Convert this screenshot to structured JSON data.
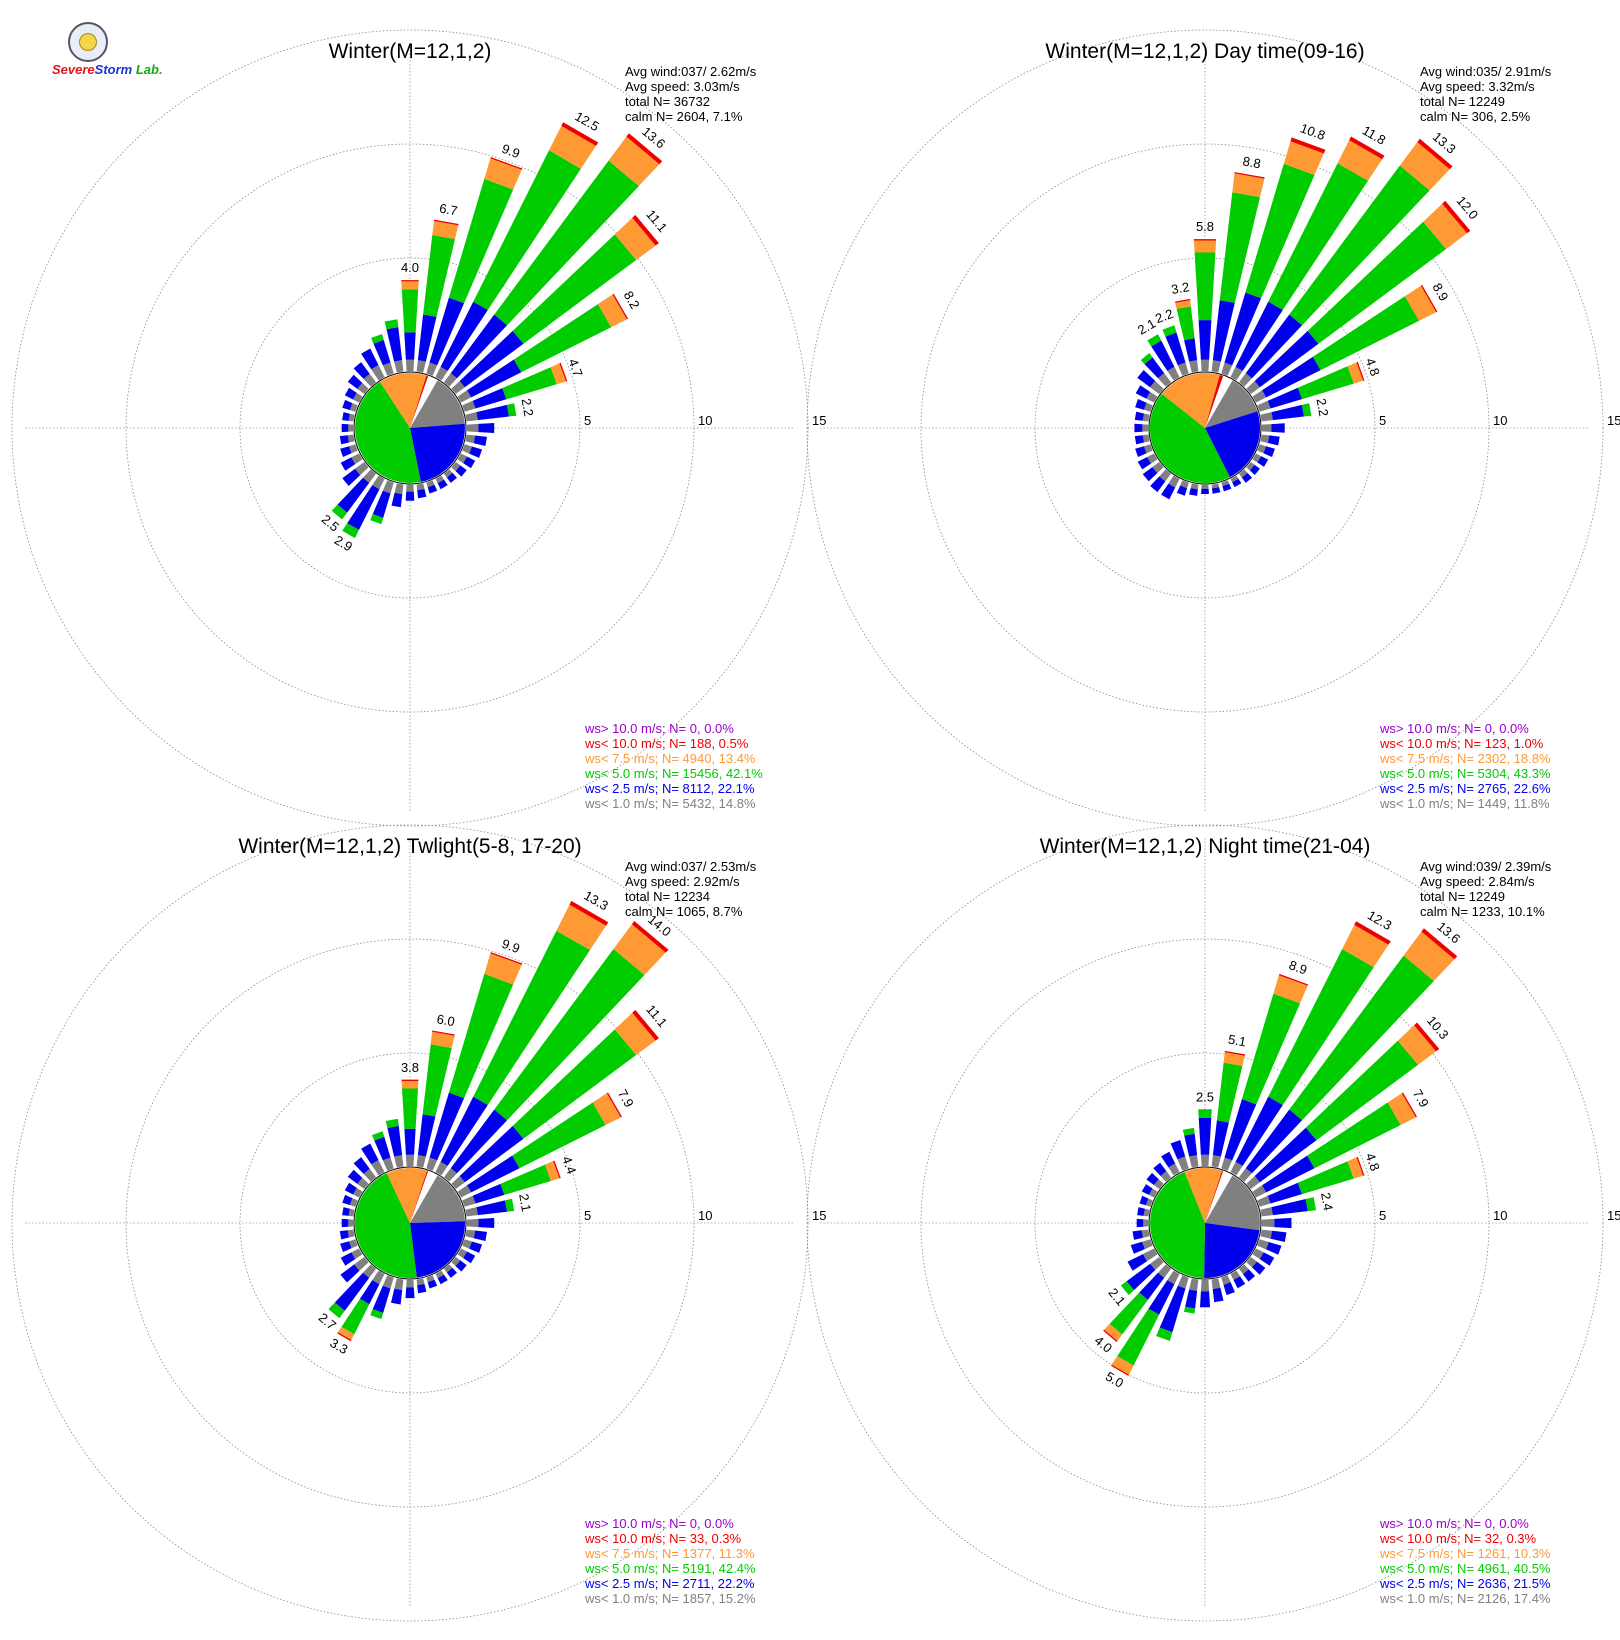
{
  "logo": {
    "brand_line1": "Severe",
    "brand_line2": "Storm",
    "brand_suffix": "Lab."
  },
  "legend_colors": {
    "ws_gt_10": "#9900cc",
    "ws_lt_10": "#ee0000",
    "ws_lt_7_5": "#ff9933",
    "ws_lt_5": "#00cc00",
    "ws_lt_2_5": "#0000ee",
    "ws_lt_1": "#808080"
  },
  "chart_data": [
    {
      "type": "wind_rose",
      "title": "Winter(M=12,1,2)",
      "ring_labels": [
        "5",
        "10",
        "15"
      ],
      "stats": [
        "Avg wind:037/ 2.62m/s",
        "Avg speed: 3.03m/s",
        "total N=     36732",
        "calm N=   2604,   7.1%"
      ],
      "legend": [
        "ws> 10.0 m/s; N=      0,  0.0%",
        "ws< 10.0 m/s; N=    188,  0.5%",
        "ws<  7.5 m/s; N=  4940, 13.4%",
        "ws<  5.0 m/s; N= 15456, 42.1%",
        "ws<  2.5 m/s; N=  8112, 22.1%",
        "ws<  1.0 m/s; N=  5432, 14.8%"
      ],
      "pie": [
        14.8,
        22.1,
        42.1,
        13.4,
        0.5,
        0.0
      ],
      "bars": [
        {
          "dir": 0,
          "total": 4.0,
          "label": "4.0"
        },
        {
          "dir": 10,
          "total": 6.7,
          "label": "6.7"
        },
        {
          "dir": 20,
          "total": 9.9,
          "label": "9.9"
        },
        {
          "dir": 30,
          "total": 12.5,
          "label": "12.5"
        },
        {
          "dir": 40,
          "total": 13.6,
          "label": "13.6"
        },
        {
          "dir": 50,
          "total": 11.1,
          "label": "11.1"
        },
        {
          "dir": 60,
          "total": 8.2,
          "label": "8.2"
        },
        {
          "dir": 70,
          "total": 4.7,
          "label": "4.7"
        },
        {
          "dir": 80,
          "total": 2.2,
          "label": "2.2"
        },
        {
          "dir": 90,
          "total": 1.2
        },
        {
          "dir": 100,
          "total": 0.9
        },
        {
          "dir": 110,
          "total": 0.8
        },
        {
          "dir": 120,
          "total": 0.7
        },
        {
          "dir": 130,
          "total": 0.6
        },
        {
          "dir": 140,
          "total": 0.5
        },
        {
          "dir": 150,
          "total": 0.5
        },
        {
          "dir": 160,
          "total": 0.5
        },
        {
          "dir": 170,
          "total": 0.6
        },
        {
          "dir": 180,
          "total": 0.7
        },
        {
          "dir": 190,
          "total": 1.0
        },
        {
          "dir": 200,
          "total": 1.9
        },
        {
          "dir": 210,
          "total": 2.9,
          "label": "2.9"
        },
        {
          "dir": 220,
          "total": 2.5,
          "label": "2.5"
        },
        {
          "dir": 230,
          "total": 1.2
        },
        {
          "dir": 240,
          "total": 0.9
        },
        {
          "dir": 250,
          "total": 0.7
        },
        {
          "dir": 260,
          "total": 0.6
        },
        {
          "dir": 270,
          "total": 0.5
        },
        {
          "dir": 280,
          "total": 0.5
        },
        {
          "dir": 290,
          "total": 0.6
        },
        {
          "dir": 300,
          "total": 0.7
        },
        {
          "dir": 310,
          "total": 0.9
        },
        {
          "dir": 320,
          "total": 1.1
        },
        {
          "dir": 330,
          "total": 1.4
        },
        {
          "dir": 340,
          "total": 1.8
        },
        {
          "dir": 350,
          "total": 2.3
        }
      ]
    },
    {
      "type": "wind_rose",
      "title": "Winter(M=12,1,2) Day time(09-16)",
      "ring_labels": [
        "5",
        "10",
        "15"
      ],
      "stats": [
        "Avg wind:035/ 2.91m/s",
        "Avg speed: 3.32m/s",
        "total N=     12249",
        "calm N=    306,   2.5%"
      ],
      "legend": [
        "ws> 10.0 m/s; N=      0,  0.0%",
        "ws< 10.0 m/s; N=    123,  1.0%",
        "ws<  7.5 m/s; N=  2302, 18.8%",
        "ws<  5.0 m/s; N=  5304, 43.3%",
        "ws<  2.5 m/s; N=  2765, 22.6%",
        "ws<  1.0 m/s; N=  1449, 11.8%"
      ],
      "pie": [
        11.8,
        22.6,
        43.3,
        18.8,
        1.0,
        0.0
      ],
      "bars": [
        {
          "dir": 0,
          "total": 5.8,
          "label": "5.8"
        },
        {
          "dir": 10,
          "total": 8.8,
          "label": "8.8"
        },
        {
          "dir": 20,
          "total": 10.8,
          "label": "10.8"
        },
        {
          "dir": 30,
          "total": 11.8,
          "label": "11.8"
        },
        {
          "dir": 40,
          "total": 13.3,
          "label": "13.3"
        },
        {
          "dir": 50,
          "total": 12.0,
          "label": "12.0"
        },
        {
          "dir": 60,
          "total": 8.9,
          "label": "8.9"
        },
        {
          "dir": 70,
          "total": 4.8,
          "label": "4.8"
        },
        {
          "dir": 80,
          "total": 2.2,
          "label": "2.2"
        },
        {
          "dir": 90,
          "total": 1.0
        },
        {
          "dir": 100,
          "total": 0.8
        },
        {
          "dir": 110,
          "total": 0.7
        },
        {
          "dir": 120,
          "total": 0.6
        },
        {
          "dir": 130,
          "total": 0.5
        },
        {
          "dir": 140,
          "total": 0.5
        },
        {
          "dir": 150,
          "total": 0.4
        },
        {
          "dir": 160,
          "total": 0.4
        },
        {
          "dir": 170,
          "total": 0.4
        },
        {
          "dir": 180,
          "total": 0.4
        },
        {
          "dir": 190,
          "total": 0.5
        },
        {
          "dir": 200,
          "total": 0.6
        },
        {
          "dir": 210,
          "total": 1.0
        },
        {
          "dir": 220,
          "total": 1.0
        },
        {
          "dir": 230,
          "total": 0.9
        },
        {
          "dir": 240,
          "total": 0.8
        },
        {
          "dir": 250,
          "total": 0.7
        },
        {
          "dir": 260,
          "total": 0.6
        },
        {
          "dir": 270,
          "total": 0.6
        },
        {
          "dir": 280,
          "total": 0.6
        },
        {
          "dir": 290,
          "total": 0.7
        },
        {
          "dir": 300,
          "total": 0.9
        },
        {
          "dir": 310,
          "total": 1.2
        },
        {
          "dir": 320,
          "total": 1.6
        },
        {
          "dir": 330,
          "total": 2.1,
          "label": "2.1"
        },
        {
          "dir": 340,
          "total": 2.2,
          "label": "2.2"
        },
        {
          "dir": 350,
          "total": 3.2,
          "label": "3.2"
        }
      ]
    },
    {
      "type": "wind_rose",
      "title": "Winter(M=12,1,2) Twlight(5-8, 17-20)",
      "ring_labels": [
        "5",
        "10",
        "15"
      ],
      "stats": [
        "Avg wind:037/ 2.53m/s",
        "Avg speed: 2.92m/s",
        "total N=     12234",
        "calm N=   1065,   8.7%"
      ],
      "legend": [
        "ws> 10.0 m/s; N=      0,  0.0%",
        "ws< 10.0 m/s; N=     33,  0.3%",
        "ws<  7.5 m/s; N=  1377, 11.3%",
        "ws<  5.0 m/s; N=  5191, 42.4%",
        "ws<  2.5 m/s; N=  2711, 22.2%",
        "ws<  1.0 m/s; N=  1857, 15.2%"
      ],
      "pie": [
        15.2,
        22.2,
        42.4,
        11.3,
        0.3,
        0.0
      ],
      "bars": [
        {
          "dir": 0,
          "total": 3.8,
          "label": "3.8"
        },
        {
          "dir": 10,
          "total": 6.0,
          "label": "6.0"
        },
        {
          "dir": 20,
          "total": 9.9,
          "label": "9.9"
        },
        {
          "dir": 30,
          "total": 13.3,
          "label": "13.3"
        },
        {
          "dir": 40,
          "total": 14.0,
          "label": "14.0"
        },
        {
          "dir": 50,
          "total": 11.1,
          "label": "11.1"
        },
        {
          "dir": 60,
          "total": 7.9,
          "label": "7.9"
        },
        {
          "dir": 70,
          "total": 4.4,
          "label": "4.4"
        },
        {
          "dir": 80,
          "total": 2.1,
          "label": "2.1"
        },
        {
          "dir": 90,
          "total": 1.2
        },
        {
          "dir": 100,
          "total": 0.9
        },
        {
          "dir": 110,
          "total": 0.8
        },
        {
          "dir": 120,
          "total": 0.7
        },
        {
          "dir": 130,
          "total": 0.6
        },
        {
          "dir": 140,
          "total": 0.5
        },
        {
          "dir": 150,
          "total": 0.5
        },
        {
          "dir": 160,
          "total": 0.5
        },
        {
          "dir": 170,
          "total": 0.6
        },
        {
          "dir": 180,
          "total": 0.8
        },
        {
          "dir": 190,
          "total": 1.1
        },
        {
          "dir": 200,
          "total": 1.9
        },
        {
          "dir": 210,
          "total": 3.3,
          "label": "3.3"
        },
        {
          "dir": 220,
          "total": 2.7,
          "label": "2.7"
        },
        {
          "dir": 230,
          "total": 1.3
        },
        {
          "dir": 240,
          "total": 0.9
        },
        {
          "dir": 250,
          "total": 0.7
        },
        {
          "dir": 260,
          "total": 0.6
        },
        {
          "dir": 270,
          "total": 0.5
        },
        {
          "dir": 280,
          "total": 0.5
        },
        {
          "dir": 290,
          "total": 0.6
        },
        {
          "dir": 300,
          "total": 0.7
        },
        {
          "dir": 310,
          "total": 0.9
        },
        {
          "dir": 320,
          "total": 1.1
        },
        {
          "dir": 330,
          "total": 1.4
        },
        {
          "dir": 340,
          "total": 1.7
        },
        {
          "dir": 350,
          "total": 2.1
        }
      ]
    },
    {
      "type": "wind_rose",
      "title": "Winter(M=12,1,2) Night time(21-04)",
      "ring_labels": [
        "5",
        "10",
        "15"
      ],
      "stats": [
        "Avg wind:039/ 2.39m/s",
        "Avg speed: 2.84m/s",
        "total N=     12249",
        "calm N=   1233,  10.1%"
      ],
      "legend": [
        "ws> 10.0 m/s; N=      0,  0.0%",
        "ws< 10.0 m/s; N=     32,  0.3%",
        "ws<  7.5 m/s; N=  1261, 10.3%",
        "ws<  5.0 m/s; N=  4961, 40.5%",
        "ws<  2.5 m/s; N=  2636, 21.5%",
        "ws<  1.0 m/s; N=  2126, 17.4%"
      ],
      "pie": [
        17.4,
        21.5,
        40.5,
        10.3,
        0.3,
        0.0
      ],
      "bars": [
        {
          "dir": 0,
          "total": 2.5,
          "label": "2.5"
        },
        {
          "dir": 10,
          "total": 5.1,
          "label": "5.1"
        },
        {
          "dir": 20,
          "total": 8.9,
          "label": "8.9"
        },
        {
          "dir": 30,
          "total": 12.3,
          "label": "12.3"
        },
        {
          "dir": 40,
          "total": 13.6,
          "label": "13.6"
        },
        {
          "dir": 50,
          "total": 10.3,
          "label": "10.3"
        },
        {
          "dir": 60,
          "total": 7.9,
          "label": "7.9"
        },
        {
          "dir": 70,
          "total": 4.8,
          "label": "4.8"
        },
        {
          "dir": 80,
          "total": 2.4,
          "label": "2.4"
        },
        {
          "dir": 90,
          "total": 1.3
        },
        {
          "dir": 100,
          "total": 1.1
        },
        {
          "dir": 110,
          "total": 1.0
        },
        {
          "dir": 120,
          "total": 0.9
        },
        {
          "dir": 130,
          "total": 0.8
        },
        {
          "dir": 140,
          "total": 0.7
        },
        {
          "dir": 150,
          "total": 0.7
        },
        {
          "dir": 160,
          "total": 0.8
        },
        {
          "dir": 170,
          "total": 1.0
        },
        {
          "dir": 180,
          "total": 1.2
        },
        {
          "dir": 190,
          "total": 1.5
        },
        {
          "dir": 200,
          "total": 2.9
        },
        {
          "dir": 210,
          "total": 5.0,
          "label": "5.0"
        },
        {
          "dir": 220,
          "total": 4.0,
          "label": "4.0"
        },
        {
          "dir": 230,
          "total": 2.1,
          "label": "2.1"
        },
        {
          "dir": 240,
          "total": 1.3
        },
        {
          "dir": 250,
          "total": 0.9
        },
        {
          "dir": 260,
          "total": 0.7
        },
        {
          "dir": 270,
          "total": 0.5
        },
        {
          "dir": 280,
          "total": 0.5
        },
        {
          "dir": 290,
          "total": 0.5
        },
        {
          "dir": 300,
          "total": 0.6
        },
        {
          "dir": 310,
          "total": 0.7
        },
        {
          "dir": 320,
          "total": 0.8
        },
        {
          "dir": 330,
          "total": 1.0
        },
        {
          "dir": 340,
          "total": 1.3
        },
        {
          "dir": 350,
          "total": 1.7
        }
      ]
    }
  ]
}
